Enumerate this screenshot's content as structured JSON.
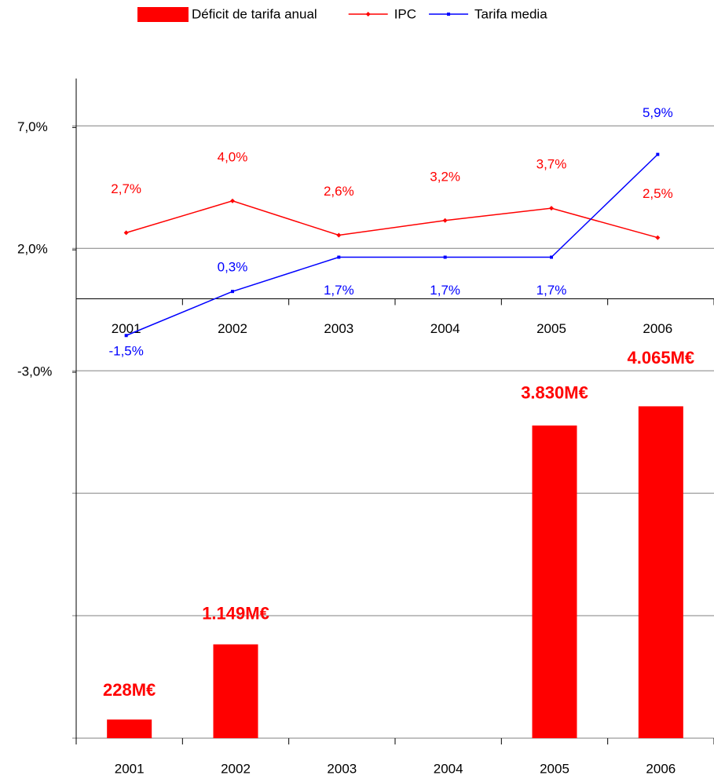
{
  "chart_data": [
    {
      "type": "bar",
      "categories": [
        "2001",
        "2002",
        "2003",
        "2004",
        "2005",
        "2006"
      ],
      "series": [
        {
          "name": "Déficit de tarifa anual",
          "color": "#ff0000",
          "values": [
            228,
            1149,
            null,
            null,
            3830,
            4065
          ],
          "value_labels": [
            "228M€",
            "1.149M€",
            null,
            null,
            "3.830M€",
            "4.065M€"
          ]
        }
      ],
      "ylim": [
        0,
        8080
      ],
      "yticks": [
        0,
        1500,
        3000,
        4500,
        6000,
        7500
      ],
      "grid": true
    },
    {
      "type": "line",
      "categories": [
        "2001",
        "2002",
        "2003",
        "2004",
        "2005",
        "2006"
      ],
      "series": [
        {
          "name": "IPC",
          "color": "#ff0000",
          "marker": "diamond",
          "values": [
            2.7,
            4.0,
            2.6,
            3.2,
            3.7,
            2.5
          ],
          "value_labels": [
            "2,7%",
            "4,0%",
            "2,6%",
            "3,2%",
            "3,7%",
            "2,5%"
          ]
        },
        {
          "name": "Tarifa media",
          "color": "#0000ff",
          "marker": "square",
          "values": [
            -1.5,
            0.3,
            1.7,
            1.7,
            1.7,
            5.9
          ],
          "value_labels": [
            "-1,5%",
            "0,3%",
            "1,7%",
            "1,7%",
            "1,7%",
            "5,9%"
          ]
        }
      ],
      "ylim": [
        -3,
        9
      ],
      "yticks": [
        {
          "value": -3,
          "label": "-3,0%"
        },
        {
          "value": 2,
          "label": "2,0%"
        },
        {
          "value": 7,
          "label": "7,0%"
        }
      ]
    }
  ]
}
